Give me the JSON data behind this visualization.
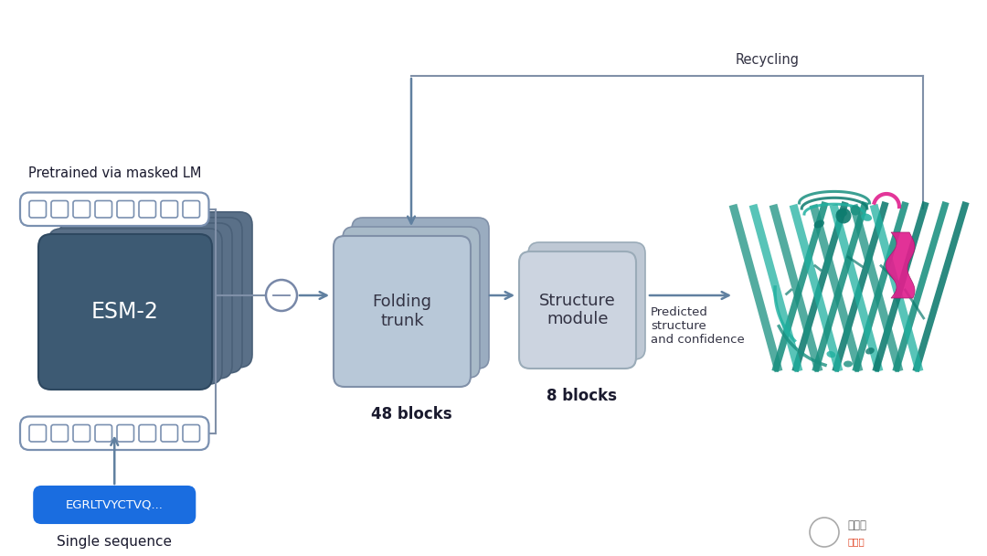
{
  "bg_color": "#ffffff",
  "esm2_front_color": "#3d5a73",
  "esm2_mid_colors": [
    "#4a6880",
    "#526e88",
    "#5a7490"
  ],
  "token_edge_color": "#7a90b0",
  "token_bg": "#ffffff",
  "folding_front_color": "#b8c8d8",
  "folding_back_colors": [
    "#a8b8c8",
    "#b0c0d0"
  ],
  "folding_edge_color": "#8090a8",
  "structure_front_color": "#ccd4e0",
  "structure_back_color": "#bcc8d4",
  "structure_edge_color": "#9aabb8",
  "blue_seq_color": "#1a6de0",
  "arrow_color": "#6080a0",
  "line_color": "#8090a8",
  "circle_color": "#7888a8",
  "text_dark": "#1a1a2e",
  "text_mid": "#333344",
  "pretrained_text": "Pretrained via masked LM",
  "esm2_label": "ESM-2",
  "folding_label": "Folding\ntrunk",
  "folding_blocks": "48 blocks",
  "structure_label": "Structure\nmodule",
  "structure_blocks": "8 blocks",
  "sequence_text": "EGRLTVYCTVQ...",
  "single_sequence_text": "Single sequence",
  "recycling_text": "Recycling",
  "predicted_text": "Predicted\nstructure\nand confidence",
  "teal_dark": "#0d7a6e",
  "teal_mid": "#1a9080",
  "teal_light": "#20b0a0",
  "magenta": "#e0208e",
  "magenta_dark": "#a01868"
}
